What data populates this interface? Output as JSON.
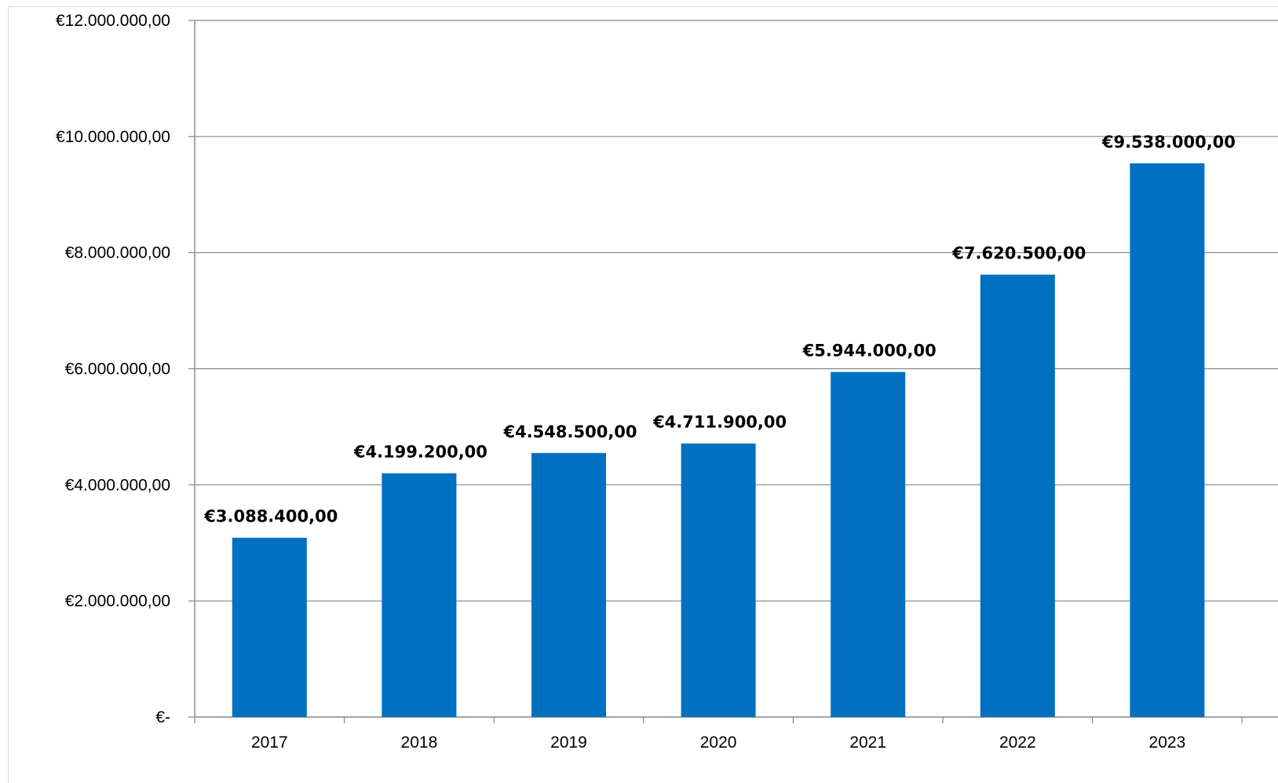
{
  "chart_data": {
    "type": "bar",
    "title": "",
    "xlabel": "",
    "ylabel": "",
    "categories": [
      "2017",
      "2018",
      "2019",
      "2020",
      "2021",
      "2022",
      "2023"
    ],
    "values": [
      3088400,
      4199200,
      4548500,
      4711900,
      5944000,
      7620500,
      9538000
    ],
    "data_labels": [
      "€3.088.400,00",
      "€4.199.200,00",
      "€4.548.500,00",
      "€4.711.900,00",
      "€5.944.000,00",
      "€7.620.500,00",
      "€9.538.000,00"
    ],
    "ylim": [
      0,
      12000000
    ],
    "y_ticks": [
      0,
      2000000,
      4000000,
      6000000,
      8000000,
      10000000,
      12000000
    ],
    "y_tick_labels": [
      "€-",
      "€2.000.000,00",
      "€4.000.000,00",
      "€6.000.000,00",
      "€8.000.000,00",
      "€10.000.000,00",
      "€12.000.000,00"
    ],
    "grid": true,
    "legend": "none",
    "bar_color": "#0070C0",
    "grid_color": "#868686"
  }
}
